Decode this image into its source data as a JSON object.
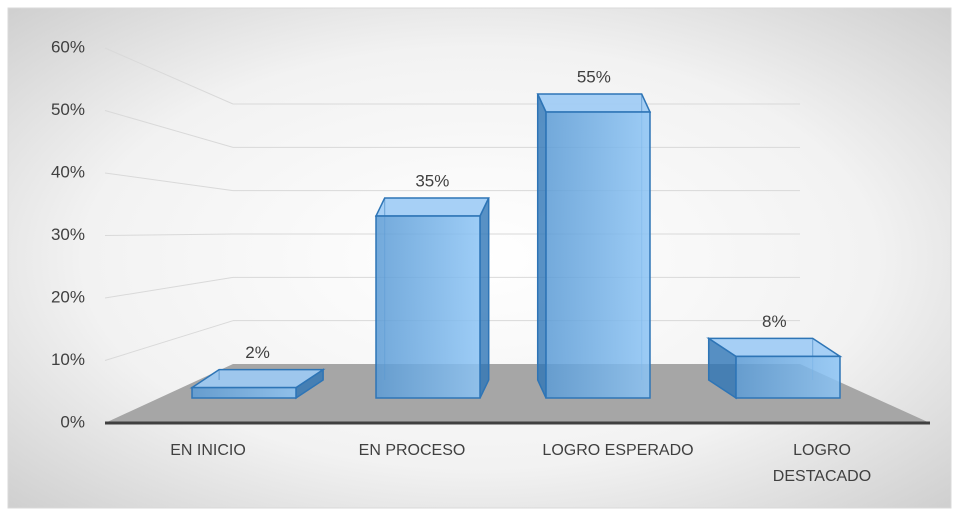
{
  "chart_data": {
    "type": "bar3d",
    "categories": [
      "EN INICIO",
      "EN PROCESO",
      "LOGRO ESPERADO",
      "LOGRO DESTACADO"
    ],
    "values": [
      2,
      35,
      55,
      8
    ],
    "value_labels": [
      "2%",
      "35%",
      "55%",
      "8%"
    ],
    "color": "#5b9bd5",
    "ylim": [
      0,
      60
    ],
    "yticks": [
      {
        "value": 0,
        "label": "0%"
      },
      {
        "value": 10,
        "label": "10%"
      },
      {
        "value": 20,
        "label": "20%"
      },
      {
        "value": 30,
        "label": "30%"
      },
      {
        "value": 40,
        "label": "40%"
      },
      {
        "value": 50,
        "label": "50%"
      },
      {
        "value": 60,
        "label": "60%"
      }
    ],
    "grid": true
  }
}
